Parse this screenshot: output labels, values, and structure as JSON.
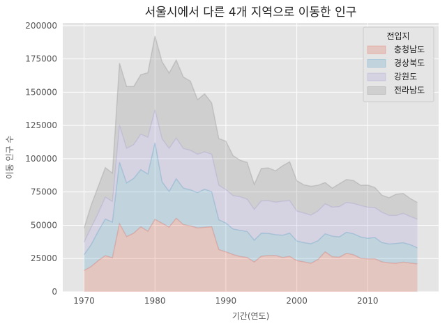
{
  "chart_data": {
    "type": "area",
    "stacked": true,
    "title": "서울시에서 다른 4개 지역으로 이동한 인구",
    "xlabel": "기간(연도)",
    "ylabel": "이동 인구 수",
    "xlim": [
      1967,
      2020
    ],
    "ylim": [
      0,
      202000
    ],
    "xticks": [
      1970,
      1980,
      1990,
      2000,
      2010
    ],
    "yticks": [
      0,
      25000,
      50000,
      75000,
      100000,
      125000,
      150000,
      175000,
      200000
    ],
    "grid": true,
    "legend": {
      "title": "전입지",
      "position": "top-right"
    },
    "x": [
      1970,
      1971,
      1972,
      1973,
      1974,
      1975,
      1976,
      1977,
      1978,
      1979,
      1980,
      1981,
      1982,
      1983,
      1984,
      1985,
      1986,
      1987,
      1988,
      1989,
      1990,
      1991,
      1992,
      1993,
      1994,
      1995,
      1996,
      1997,
      1998,
      1999,
      2000,
      2001,
      2002,
      2003,
      2004,
      2005,
      2006,
      2007,
      2008,
      2009,
      2010,
      2011,
      2012,
      2013,
      2014,
      2015,
      2016,
      2017
    ],
    "series": [
      {
        "name": "충청남도",
        "color": "#E24A33",
        "values": [
          15954,
          18943,
          23406,
          27139,
          25509,
          51205,
          41447,
          43993,
          48819,
          45467,
          54442,
          51526,
          48595,
          55256,
          50501,
          49514,
          47963,
          48488,
          48891,
          31733,
          30000,
          28000,
          26500,
          25800,
          22400,
          26700,
          27200,
          27300,
          25800,
          26600,
          23400,
          22500,
          21400,
          24300,
          30000,
          26300,
          26000,
          28900,
          27800,
          25200,
          24700,
          24800,
          22500,
          21700,
          21400,
          22300,
          21600,
          21000
        ]
      },
      {
        "name": "경상북도",
        "color": "#348ABD",
        "values": [
          11868,
          16459,
          22073,
          27531,
          26902,
          46177,
          40376,
          41155,
          42940,
          43035,
          57539,
          31100,
          26800,
          29700,
          27400,
          27100,
          26600,
          28600,
          26300,
          22400,
          21700,
          19200,
          19700,
          19500,
          16400,
          17300,
          16700,
          15600,
          16700,
          17500,
          14800,
          14400,
          14700,
          14100,
          13600,
          15500,
          15300,
          15800,
          15800,
          16000,
          15500,
          16000,
          14500,
          14200,
          14900,
          14600,
          13800,
          12000
        ]
      },
      {
        "name": "강원도",
        "color": "#988ED5",
        "values": [
          9352,
          12885,
          13561,
          16481,
          15479,
          27837,
          25927,
          25415,
          26700,
          27599,
          24700,
          32400,
          32400,
          30500,
          29800,
          29700,
          28800,
          28100,
          28200,
          26000,
          25000,
          25100,
          25200,
          24300,
          23100,
          24300,
          24600,
          24400,
          25600,
          24400,
          22500,
          22300,
          21500,
          22400,
          22500,
          21800,
          22700,
          22400,
          22800,
          23600,
          23400,
          22500,
          22800,
          21500,
          21000,
          22000,
          21200,
          21500
        ]
      },
      {
        "name": "전라남도",
        "color": "#777777",
        "values": [
          10513,
          16755,
          20157,
          22160,
          21314,
          46610,
          46561,
          43700,
          44700,
          48500,
          55500,
          57900,
          56600,
          58700,
          53700,
          52000,
          41000,
          43500,
          38500,
          35000,
          36500,
          30100,
          27500,
          27600,
          18800,
          24400,
          24600,
          23600,
          26600,
          29200,
          22800,
          21200,
          21700,
          19300,
          16000,
          14300,
          17200,
          17300,
          17200,
          15300,
          16600,
          15100,
          12800,
          13300,
          16000,
          15000,
          13500,
          12600
        ]
      }
    ]
  }
}
